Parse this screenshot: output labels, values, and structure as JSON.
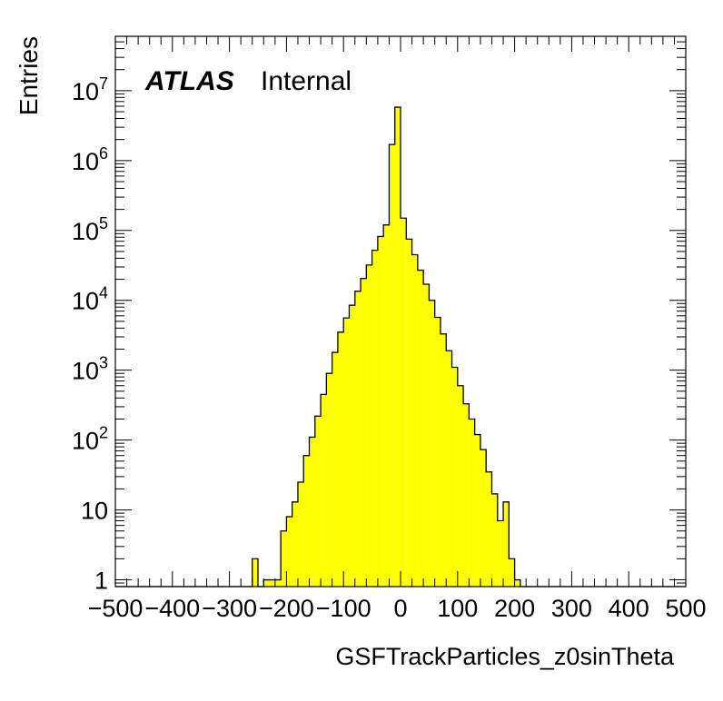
{
  "chart_data": {
    "type": "bar",
    "title": "",
    "xlabel": "GSFTrackParticles_z0sinTheta",
    "ylabel": "Entries",
    "label": {
      "experiment": "ATLAS",
      "status": "Internal"
    },
    "xlim": [
      -500,
      500
    ],
    "ylim": [
      0.8,
      60000000
    ],
    "yscale": "log",
    "grid": false,
    "colors": {
      "fill": "#ffff00",
      "line": "#000000",
      "background": "#ffffff"
    },
    "x_ticks": [
      -500,
      -400,
      -300,
      -200,
      -100,
      0,
      100,
      200,
      300,
      400,
      500
    ],
    "x_tick_labels": [
      "−500",
      "−400",
      "−300",
      "−200",
      "−100",
      "0",
      "100",
      "200",
      "300",
      "400",
      "500"
    ],
    "y_ticks": [
      1,
      10,
      100,
      1000,
      10000,
      100000,
      1000000,
      10000000
    ],
    "y_tick_labels": [
      "1",
      "10",
      "10^2",
      "10^3",
      "10^4",
      "10^5",
      "10^6",
      "10^7"
    ],
    "bin_width": 10,
    "bin_edges_start": -500,
    "values": [
      0,
      0,
      0,
      0,
      0,
      0,
      0,
      0,
      0,
      0,
      0,
      0,
      0,
      0,
      0,
      0,
      0,
      0,
      0,
      0,
      0,
      0,
      0,
      0,
      2,
      0,
      1,
      1,
      1,
      5,
      8,
      13,
      25,
      60,
      110,
      220,
      450,
      900,
      1800,
      3500,
      5600,
      8500,
      13500,
      20500,
      32000,
      52000,
      82000,
      120000,
      1700000,
      5800000,
      150000,
      75000,
      45000,
      27000,
      17000,
      10000,
      5700,
      3300,
      1900,
      1100,
      600,
      330,
      200,
      120,
      73,
      35,
      17,
      7,
      13,
      2,
      1,
      0,
      0,
      0,
      0,
      0,
      0,
      0,
      0,
      0,
      0,
      0,
      0,
      0,
      0,
      0,
      0,
      0,
      0,
      0,
      0,
      0,
      0,
      0,
      0,
      0,
      0,
      0,
      0,
      0
    ]
  }
}
